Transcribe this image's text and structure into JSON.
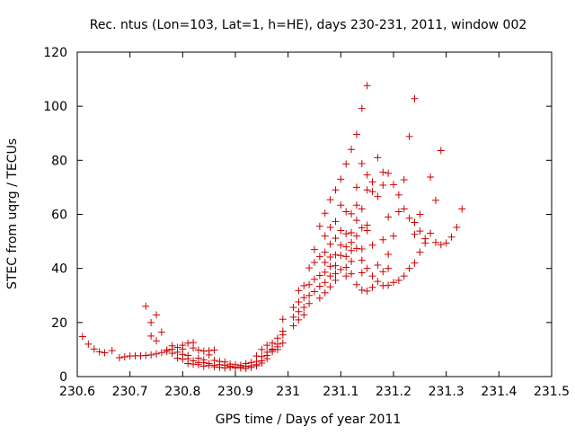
{
  "chart_data": {
    "type": "scatter",
    "title": "Rec. ntus (Lon=103, Lat=1, h=HE), days 230-231, 2011, window 002",
    "xlabel": "GPS time / Days of year 2011",
    "ylabel": "STEC from uqrg / TECUs",
    "xlim": [
      230.6,
      231.5
    ],
    "ylim": [
      0,
      120
    ],
    "x_ticks": [
      "230.6",
      "230.7",
      "230.8",
      "230.9",
      "231",
      "231.1",
      "231.2",
      "231.3",
      "231.4",
      "231.5"
    ],
    "y_ticks": [
      "0",
      "20",
      "40",
      "60",
      "80",
      "100",
      "120"
    ],
    "grid": false,
    "marker": "+",
    "color": "#cc0000",
    "series": [
      {
        "points": [
          [
            230.61,
            14.8
          ],
          [
            230.621,
            12.0
          ],
          [
            230.632,
            10.2
          ],
          [
            230.642,
            9.2
          ],
          [
            230.652,
            8.8
          ],
          [
            230.666,
            9.6
          ],
          [
            230.68,
            7.0
          ],
          [
            230.69,
            7.3
          ],
          [
            230.7,
            7.6
          ],
          [
            230.71,
            7.7
          ],
          [
            230.72,
            7.7
          ],
          [
            230.73,
            7.8
          ],
          [
            230.74,
            8.0
          ],
          [
            230.75,
            8.4
          ],
          [
            230.76,
            8.9
          ],
          [
            230.77,
            9.3
          ],
          [
            230.78,
            10.1
          ],
          [
            230.79,
            10.8
          ],
          [
            230.8,
            11.6
          ],
          [
            230.81,
            12.4
          ],
          [
            230.82,
            12.6
          ],
          [
            230.83,
            9.8
          ],
          [
            230.84,
            9.4
          ],
          [
            230.85,
            9.6
          ],
          [
            230.86,
            9.8
          ],
          [
            230.87,
            5.6
          ],
          [
            230.88,
            5.4
          ],
          [
            230.89,
            4.6
          ],
          [
            230.9,
            4.4
          ],
          [
            230.91,
            4.2
          ],
          [
            230.92,
            4.8
          ],
          [
            230.93,
            5.2
          ],
          [
            230.94,
            7.6
          ],
          [
            230.95,
            10.0
          ],
          [
            230.96,
            11.6
          ],
          [
            230.97,
            12.4
          ],
          [
            230.98,
            14.2
          ],
          [
            230.99,
            15.4
          ],
          [
            230.73,
            26.0
          ],
          [
            230.74,
            20.0
          ],
          [
            230.75,
            22.8
          ],
          [
            230.74,
            15.0
          ],
          [
            230.76,
            16.4
          ],
          [
            230.75,
            13.2
          ],
          [
            230.78,
            11.4
          ],
          [
            230.79,
            9.0
          ],
          [
            230.8,
            10.2
          ],
          [
            230.81,
            7.8
          ],
          [
            230.82,
            10.6
          ],
          [
            230.83,
            6.8
          ],
          [
            230.84,
            6.2
          ],
          [
            230.85,
            8.0
          ],
          [
            230.86,
            6.0
          ],
          [
            230.87,
            4.4
          ],
          [
            230.88,
            4.2
          ],
          [
            230.89,
            3.8
          ],
          [
            230.9,
            3.6
          ],
          [
            230.91,
            3.6
          ],
          [
            230.92,
            3.8
          ],
          [
            230.93,
            4.0
          ],
          [
            230.94,
            5.6
          ],
          [
            230.95,
            7.4
          ],
          [
            230.96,
            9.0
          ],
          [
            230.97,
            10.2
          ],
          [
            230.98,
            11.0
          ],
          [
            230.99,
            12.4
          ],
          [
            230.99,
            21.2
          ],
          [
            230.8,
            8.2
          ],
          [
            230.81,
            6.6
          ],
          [
            230.82,
            5.8
          ],
          [
            230.83,
            5.2
          ],
          [
            230.84,
            5.2
          ],
          [
            230.85,
            4.8
          ],
          [
            230.86,
            4.2
          ],
          [
            230.89,
            3.4
          ],
          [
            230.9,
            3.2
          ],
          [
            230.91,
            3.2
          ],
          [
            230.93,
            3.4
          ],
          [
            230.94,
            4.4
          ],
          [
            230.95,
            5.8
          ],
          [
            230.96,
            7.8
          ],
          [
            230.97,
            9.2
          ],
          [
            230.98,
            10.0
          ],
          [
            230.99,
            16.8
          ],
          [
            230.77,
            9.8
          ],
          [
            230.78,
            8.6
          ],
          [
            230.79,
            6.8
          ],
          [
            230.8,
            6.4
          ],
          [
            230.81,
            4.8
          ],
          [
            230.82,
            4.6
          ],
          [
            230.83,
            4.4
          ],
          [
            230.84,
            3.8
          ],
          [
            230.85,
            4.2
          ],
          [
            230.86,
            3.6
          ],
          [
            230.87,
            3.4
          ],
          [
            230.88,
            3.2
          ],
          [
            230.92,
            3.0
          ],
          [
            230.94,
            4.0
          ],
          [
            230.95,
            5.0
          ],
          [
            230.96,
            6.6
          ],
          [
            230.97,
            9.8
          ],
          [
            230.98,
            12.0
          ],
          [
            231.01,
            25.6
          ],
          [
            231.01,
            22.0
          ],
          [
            231.01,
            18.8
          ],
          [
            231.02,
            31.8
          ],
          [
            231.02,
            27.6
          ],
          [
            231.02,
            24.0
          ],
          [
            231.02,
            21.0
          ],
          [
            231.03,
            33.6
          ],
          [
            231.03,
            29.2
          ],
          [
            231.03,
            25.6
          ],
          [
            231.03,
            22.8
          ],
          [
            231.04,
            40.2
          ],
          [
            231.04,
            34.0
          ],
          [
            231.04,
            30.0
          ],
          [
            231.04,
            27.0
          ],
          [
            231.05,
            47.0
          ],
          [
            231.05,
            42.2
          ],
          [
            231.05,
            36.0
          ],
          [
            231.05,
            31.4
          ],
          [
            231.06,
            55.6
          ],
          [
            231.06,
            44.4
          ],
          [
            231.06,
            37.4
          ],
          [
            231.06,
            33.4
          ],
          [
            231.06,
            29.0
          ],
          [
            231.07,
            60.4
          ],
          [
            231.07,
            52.0
          ],
          [
            231.07,
            46.0
          ],
          [
            231.07,
            42.2
          ],
          [
            231.07,
            38.6
          ],
          [
            231.07,
            34.8
          ],
          [
            231.07,
            31.0
          ],
          [
            231.08,
            65.4
          ],
          [
            231.08,
            55.2
          ],
          [
            231.08,
            49.0
          ],
          [
            231.08,
            44.2
          ],
          [
            231.08,
            40.8
          ],
          [
            231.08,
            37.2
          ],
          [
            231.08,
            33.2
          ],
          [
            231.09,
            69.0
          ],
          [
            231.09,
            57.4
          ],
          [
            231.09,
            51.2
          ],
          [
            231.09,
            45.0
          ],
          [
            231.09,
            41.0
          ],
          [
            231.09,
            38.0
          ],
          [
            231.09,
            35.6
          ],
          [
            231.1,
            73.0
          ],
          [
            231.1,
            63.4
          ],
          [
            231.1,
            54.0
          ],
          [
            231.1,
            48.6
          ],
          [
            231.1,
            44.8
          ],
          [
            231.1,
            39.6
          ],
          [
            231.11,
            78.6
          ],
          [
            231.11,
            61.0
          ],
          [
            231.11,
            52.8
          ],
          [
            231.11,
            48.0
          ],
          [
            231.11,
            44.4
          ],
          [
            231.11,
            40.4
          ],
          [
            231.11,
            37.2
          ],
          [
            231.12,
            84.0
          ],
          [
            231.12,
            60.2
          ],
          [
            231.12,
            53.2
          ],
          [
            231.12,
            49.6
          ],
          [
            231.12,
            46.6
          ],
          [
            231.12,
            42.6
          ],
          [
            231.12,
            38.0
          ],
          [
            231.13,
            89.6
          ],
          [
            231.13,
            70.0
          ],
          [
            231.13,
            63.4
          ],
          [
            231.13,
            57.8
          ],
          [
            231.13,
            52.0
          ],
          [
            231.13,
            47.4
          ],
          [
            231.13,
            34.0
          ],
          [
            231.14,
            99.2
          ],
          [
            231.14,
            78.8
          ],
          [
            231.14,
            62.0
          ],
          [
            231.14,
            55.0
          ],
          [
            231.14,
            47.2
          ],
          [
            231.14,
            43.0
          ],
          [
            231.14,
            38.4
          ],
          [
            231.14,
            32.0
          ],
          [
            231.15,
            107.6
          ],
          [
            231.15,
            74.6
          ],
          [
            231.15,
            69.0
          ],
          [
            231.15,
            56.0
          ],
          [
            231.15,
            54.0
          ],
          [
            231.15,
            40.0
          ],
          [
            231.15,
            31.6
          ],
          [
            231.16,
            72.0
          ],
          [
            231.16,
            68.4
          ],
          [
            231.16,
            48.6
          ],
          [
            231.16,
            37.2
          ],
          [
            231.16,
            33.0
          ],
          [
            231.17,
            81.0
          ],
          [
            231.17,
            66.6
          ],
          [
            231.17,
            41.2
          ],
          [
            231.17,
            35.2
          ],
          [
            231.18,
            75.6
          ],
          [
            231.18,
            70.8
          ],
          [
            231.18,
            50.6
          ],
          [
            231.18,
            38.8
          ],
          [
            231.18,
            33.6
          ],
          [
            231.19,
            75.2
          ],
          [
            231.19,
            59.0
          ],
          [
            231.19,
            45.2
          ],
          [
            231.19,
            40.0
          ],
          [
            231.19,
            33.8
          ],
          [
            231.2,
            71.0
          ],
          [
            231.2,
            52.0
          ],
          [
            231.2,
            34.8
          ],
          [
            231.21,
            67.2
          ],
          [
            231.21,
            61.0
          ],
          [
            231.21,
            35.6
          ],
          [
            231.22,
            72.8
          ],
          [
            231.22,
            62.0
          ],
          [
            231.22,
            37.2
          ],
          [
            231.23,
            88.8
          ],
          [
            231.23,
            58.6
          ],
          [
            231.23,
            40.0
          ],
          [
            231.24,
            102.8
          ],
          [
            231.24,
            57.0
          ],
          [
            231.24,
            52.6
          ],
          [
            231.24,
            42.0
          ],
          [
            231.25,
            60.0
          ],
          [
            231.25,
            53.8
          ],
          [
            231.25,
            46.0
          ],
          [
            231.26,
            51.0
          ],
          [
            231.26,
            49.4
          ],
          [
            231.27,
            73.8
          ],
          [
            231.27,
            53.0
          ],
          [
            231.28,
            65.2
          ],
          [
            231.28,
            49.6
          ],
          [
            231.29,
            83.6
          ],
          [
            231.29,
            48.8
          ],
          [
            231.3,
            49.4
          ],
          [
            231.31,
            51.6
          ],
          [
            231.32,
            55.2
          ],
          [
            231.33,
            62.0
          ]
        ]
      }
    ]
  }
}
